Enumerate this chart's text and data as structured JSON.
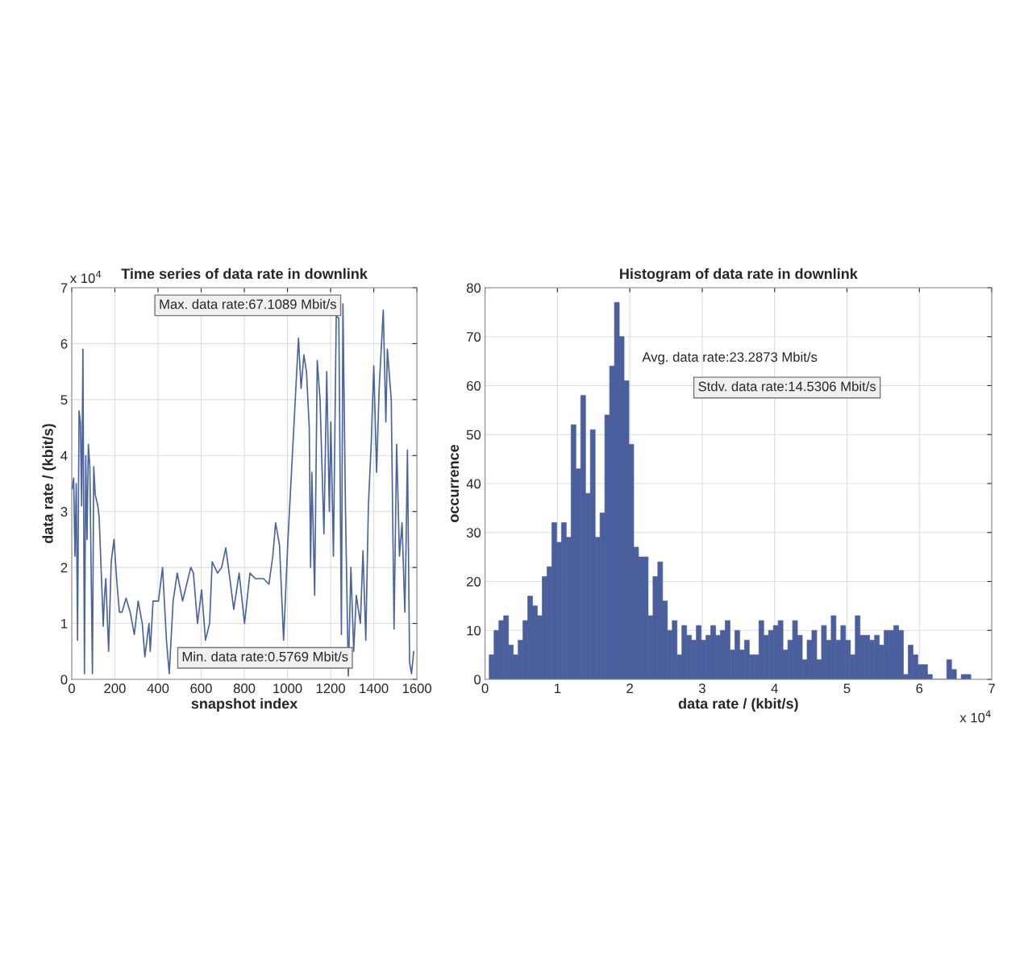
{
  "chart_data": [
    {
      "type": "line",
      "title": "Time series of data rate in downlink",
      "xlabel": "snapshot index",
      "ylabel": "data rate / (kbit/s)",
      "annotations": [
        "x 10$^{4}$",
        "Max. data rate:67.1089 Mbit/s",
        "Min. data rate:0.5769 Mbit/s"
      ],
      "x": [
        2,
        9,
        15,
        21,
        27,
        34,
        40,
        46,
        52,
        59,
        65,
        71,
        77,
        84,
        96,
        102,
        109,
        115,
        121,
        127,
        140,
        146,
        152,
        158,
        171,
        183,
        196,
        208,
        221,
        233,
        252,
        271,
        290,
        308,
        327,
        339,
        358,
        364,
        377,
        402,
        421,
        439,
        452,
        470,
        489,
        514,
        539,
        552,
        564,
        583,
        602,
        620,
        639,
        651,
        676,
        695,
        714,
        733,
        751,
        776,
        801,
        826,
        851,
        889,
        914,
        932,
        945,
        963,
        982,
        1001,
        1051,
        1063,
        1076,
        1088,
        1101,
        1107,
        1113,
        1126,
        1138,
        1151,
        1169,
        1182,
        1194,
        1201,
        1213,
        1226,
        1238,
        1250,
        1257,
        1269,
        1282,
        1294,
        1307,
        1319,
        1338,
        1350,
        1363,
        1375,
        1388,
        1400,
        1413,
        1425,
        1444,
        1456,
        1463,
        1481,
        1494,
        1506,
        1519,
        1531,
        1544,
        1550,
        1556,
        1566,
        1575,
        1585
      ],
      "series": [
        {
          "color": "#4a64a0",
          "values": [
            3.4,
            3.6,
            2.2,
            3.5,
            0.7,
            4.8,
            4.6,
            3.1,
            5.9,
            0.1,
            4.0,
            2.5,
            4.2,
            3.8,
            0.1,
            3.8,
            3.3,
            3.2,
            3.1,
            2.9,
            1.6,
            0.95,
            1.5,
            1.8,
            0.5,
            2.1,
            2.5,
            1.8,
            1.2,
            1.2,
            1.45,
            1.2,
            0.8,
            1.4,
            1.0,
            0.4,
            1.0,
            0.5,
            1.4,
            1.4,
            2.0,
            0.7,
            0.1,
            1.4,
            1.9,
            1.4,
            1.8,
            2.0,
            1.9,
            1.0,
            1.6,
            0.7,
            1.0,
            2.1,
            1.9,
            2.0,
            2.35,
            1.8,
            1.25,
            1.9,
            1.0,
            1.9,
            1.8,
            1.8,
            1.7,
            2.2,
            2.8,
            2.4,
            0.7,
            2.4,
            6.1,
            5.2,
            5.8,
            5.5,
            4.5,
            2.0,
            3.7,
            1.5,
            5.7,
            5.0,
            2.6,
            5.5,
            3.0,
            4.6,
            2.2,
            6.5,
            6.45,
            0.8,
            6.71,
            3.0,
            0.06,
            2.0,
            0.5,
            1.5,
            1.0,
            2.3,
            0.7,
            3.1,
            4.2,
            5.6,
            3.7,
            5.2,
            6.6,
            4.6,
            5.9,
            5.0,
            0.9,
            4.2,
            2.2,
            2.8,
            1.2,
            2.5,
            4.1,
            0.3,
            0.1,
            0.5
          ]
        }
      ],
      "xlim": [
        0,
        1600
      ],
      "xticks": [
        0,
        200,
        400,
        600,
        800,
        1000,
        1200,
        1400,
        1600
      ],
      "ylim": [
        0,
        7
      ],
      "yticks": [
        0,
        1,
        2,
        3,
        4,
        5,
        6,
        7
      ],
      "grid": true
    },
    {
      "type": "histogram",
      "title": "Histogram of data rate in downlink",
      "xlabel": "data rate / (kbit/s)",
      "ylabel": "occurrence",
      "annotations": [
        "x 10$^{4}$",
        "Avg. data rate:23.2873 Mbit/s",
        "Stdv. data rate:14.5306 Mbit/s"
      ],
      "color": "#4a5f9c",
      "bins": [
        0.0577,
        0.1242,
        0.1908,
        0.2573,
        0.3238,
        0.3904,
        0.4569,
        0.5234,
        0.59,
        0.6565,
        0.723,
        0.7896,
        0.8561,
        0.9226,
        0.9892,
        1.0557,
        1.1222,
        1.1887,
        1.2553,
        1.3218,
        1.3883,
        1.4549,
        1.5214,
        1.5879,
        1.6545,
        1.721,
        1.7875,
        1.8541,
        1.9206,
        1.9871,
        2.0537,
        2.1202,
        2.1867,
        2.2533,
        2.3198,
        2.3863,
        2.4529,
        2.5194,
        2.5859,
        2.6525,
        2.719,
        2.7855,
        2.852,
        2.9186,
        2.9851,
        3.0516,
        3.1182,
        3.1847,
        3.2512,
        3.3178,
        3.3843,
        3.4508,
        3.5174,
        3.5839,
        3.6504,
        3.717,
        3.7835,
        3.85,
        3.9166,
        3.9831,
        4.0496,
        4.1161,
        4.1827,
        4.2492,
        4.3157,
        4.3823,
        4.4488,
        4.5153,
        4.5819,
        4.6484,
        4.7149,
        4.7815,
        4.848,
        4.9145,
        4.9811,
        5.0476,
        5.1141,
        5.1807,
        5.2472,
        5.3137,
        5.3803,
        5.4468,
        5.5133,
        5.5798,
        5.6464,
        5.7129,
        5.7794,
        5.846,
        5.9125,
        5.979,
        6.0456,
        6.1121,
        6.1786,
        6.2452,
        6.3117,
        6.3782,
        6.4448,
        6.5113,
        6.5778,
        6.6444,
        6.7109
      ],
      "values": [
        5,
        10,
        12,
        13,
        7,
        5,
        8,
        12,
        17,
        15,
        13,
        21,
        23,
        32,
        28,
        32,
        29,
        52,
        43,
        58,
        38,
        51,
        29,
        34,
        54,
        64,
        77,
        70,
        61,
        48,
        27,
        25,
        25,
        13,
        21,
        24,
        16,
        10,
        12,
        5,
        11,
        9,
        8,
        11,
        8,
        9,
        11,
        9,
        10,
        12,
        6,
        10,
        6,
        8,
        5,
        5,
        12,
        9,
        10,
        11,
        12,
        6,
        8,
        12,
        9,
        4,
        8,
        10,
        4,
        11,
        8,
        13,
        8,
        11,
        8,
        5,
        13,
        9,
        9,
        8,
        9,
        7,
        10,
        10,
        11,
        10,
        1,
        7,
        5,
        3,
        3,
        1,
        0,
        0,
        0,
        4,
        2,
        0,
        1,
        1
      ],
      "xlim": [
        0,
        7
      ],
      "xticks": [
        0,
        1,
        2,
        3,
        4,
        5,
        6,
        7
      ],
      "ylim": [
        0,
        80
      ],
      "yticks": [
        0,
        10,
        20,
        30,
        40,
        50,
        60,
        70,
        80
      ],
      "grid": true
    }
  ]
}
